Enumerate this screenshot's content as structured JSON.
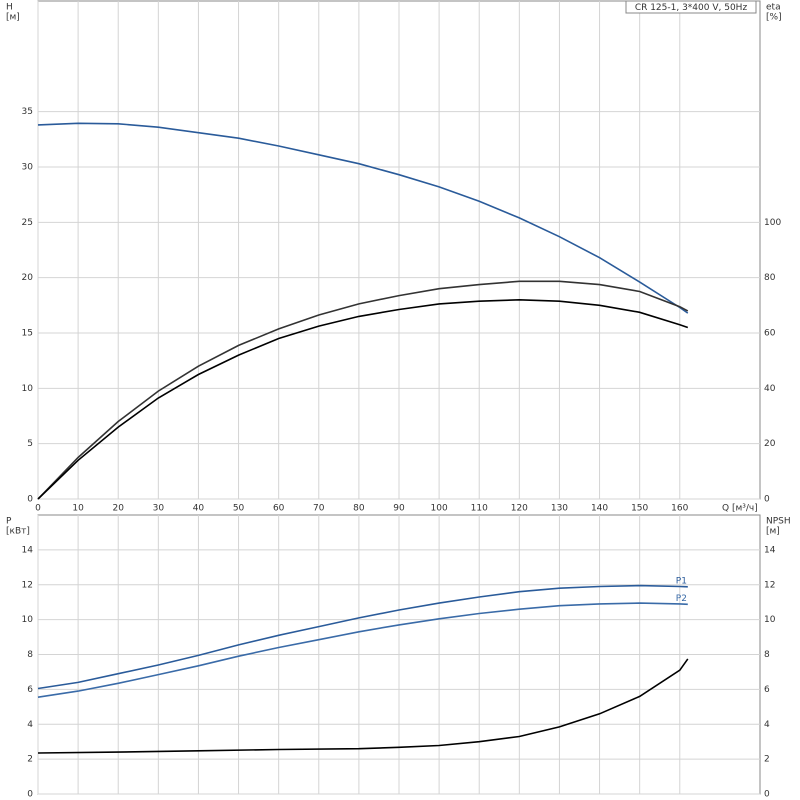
{
  "chart_data": [
    {
      "type": "line",
      "title": "CR 125-1, 3*400 V, 50Hz",
      "y_label": "H",
      "y_unit": "[м]",
      "y2_label": "eta",
      "y2_unit": "[%]",
      "x_label": "Q [м³/ч]",
      "xlim": [
        0,
        180
      ],
      "xticks": [
        0,
        10,
        20,
        30,
        40,
        50,
        60,
        70,
        80,
        90,
        100,
        110,
        120,
        130,
        140,
        150,
        160
      ],
      "ylim": [
        0,
        45
      ],
      "yticks": [
        0,
        5,
        10,
        15,
        20,
        25,
        30,
        35
      ],
      "y2lim": [
        0,
        180
      ],
      "y2ticks": [
        0,
        20,
        40,
        60,
        80,
        100
      ],
      "grid": true,
      "x": [
        0,
        10,
        20,
        30,
        40,
        50,
        60,
        70,
        80,
        90,
        100,
        110,
        120,
        130,
        140,
        150,
        160,
        162
      ],
      "series": [
        {
          "color": "#2a5b9a",
          "values": [
            33.8,
            33.95,
            33.9,
            33.6,
            33.1,
            32.6,
            31.9,
            31.1,
            30.3,
            29.3,
            28.2,
            26.9,
            25.4,
            23.7,
            21.8,
            19.6,
            17.3,
            16.8
          ]
        },
        {
          "color": "#333333",
          "axis": "y2",
          "values": [
            0,
            15,
            28,
            39,
            48,
            55.5,
            61.5,
            66.5,
            70.5,
            73.5,
            76,
            77.5,
            78.7,
            78.7,
            77.5,
            75,
            69.5,
            68
          ]
        },
        {
          "color": "#000000",
          "axis": "y2",
          "values": [
            0,
            14,
            26,
            36.5,
            45,
            52,
            58,
            62.5,
            66,
            68.5,
            70.5,
            71.5,
            72,
            71.5,
            70,
            67.5,
            63,
            62
          ]
        }
      ]
    },
    {
      "type": "line",
      "y_label": "P",
      "y_unit": "[кВт]",
      "y2_label": "NPSH",
      "y2_unit": "[м]",
      "xlim": [
        0,
        180
      ],
      "ylim": [
        0,
        16
      ],
      "yticks": [
        0,
        2,
        4,
        6,
        8,
        10,
        12,
        14
      ],
      "y2lim": [
        0,
        16
      ],
      "y2ticks": [
        0,
        2,
        4,
        6,
        8,
        10,
        12,
        14
      ],
      "grid": true,
      "series": [
        {
          "name": "P1",
          "color": "#2a5b9a",
          "x": [
            0,
            10,
            20,
            30,
            40,
            50,
            60,
            70,
            80,
            90,
            100,
            110,
            120,
            130,
            140,
            150,
            160,
            162
          ],
          "values": [
            6.05,
            6.4,
            6.9,
            7.4,
            7.95,
            8.55,
            9.1,
            9.6,
            10.1,
            10.55,
            10.95,
            11.3,
            11.6,
            11.8,
            11.9,
            11.95,
            11.9,
            11.88
          ]
        },
        {
          "name": "P2",
          "color": "#3a6ba8",
          "x": [
            0,
            10,
            20,
            30,
            40,
            50,
            60,
            70,
            80,
            90,
            100,
            110,
            120,
            130,
            140,
            150,
            160,
            162
          ],
          "values": [
            5.55,
            5.9,
            6.35,
            6.85,
            7.35,
            7.9,
            8.4,
            8.85,
            9.3,
            9.7,
            10.05,
            10.35,
            10.6,
            10.8,
            10.9,
            10.95,
            10.9,
            10.88
          ]
        },
        {
          "color": "#000000",
          "axis": "y2",
          "x": [
            0,
            20,
            40,
            60,
            80,
            90,
            100,
            110,
            120,
            130,
            140,
            150,
            160,
            162
          ],
          "values": [
            2.35,
            2.4,
            2.48,
            2.55,
            2.6,
            2.68,
            2.78,
            3.0,
            3.3,
            3.85,
            4.6,
            5.6,
            7.1,
            7.75
          ]
        }
      ]
    }
  ]
}
